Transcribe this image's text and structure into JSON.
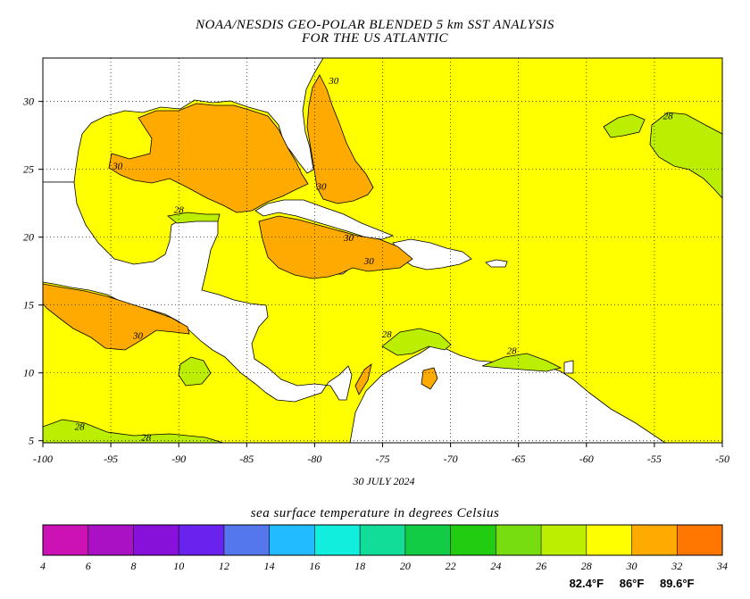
{
  "title_line1": "NOAA/NESDIS GEO-POLAR BLENDED 5 km SST ANALYSIS",
  "title_line2": "FOR THE US ATLANTIC",
  "date": "30 JULY 2024",
  "x_axis": {
    "ticks": [
      -100,
      -95,
      -90,
      -85,
      -80,
      -75,
      -70,
      -65,
      -60,
      -55,
      -50
    ],
    "labels": [
      "-100",
      "-95",
      "-90",
      "-85",
      "-80",
      "-75",
      "-70",
      "-65",
      "-60",
      "-55",
      "-50"
    ]
  },
  "y_axis": {
    "ticks": [
      5,
      10,
      15,
      20,
      25,
      30
    ],
    "labels": [
      "5",
      "10",
      "15",
      "20",
      "25",
      "30"
    ]
  },
  "contour_labels": [
    {
      "text": "30",
      "lon": -78.6,
      "lat": 31.3
    },
    {
      "text": "30",
      "lon": -94.5,
      "lat": 25.0
    },
    {
      "text": "30",
      "lon": -79.5,
      "lat": 23.5
    },
    {
      "text": "30",
      "lon": -77.5,
      "lat": 19.7
    },
    {
      "text": "30",
      "lon": -76.0,
      "lat": 18.0
    },
    {
      "text": "30",
      "lon": -93.0,
      "lat": 12.5
    },
    {
      "text": "28",
      "lon": -54.0,
      "lat": 28.7
    },
    {
      "text": "28",
      "lon": -90.0,
      "lat": 21.8
    },
    {
      "text": "28",
      "lon": -74.7,
      "lat": 12.6
    },
    {
      "text": "28",
      "lon": -65.5,
      "lat": 11.4
    },
    {
      "text": "28",
      "lon": -97.3,
      "lat": 5.8
    },
    {
      "text": "28",
      "lon": -92.4,
      "lat": 5.0
    }
  ],
  "colorbar": {
    "title": "sea surface temperature in degrees Celsius",
    "colors": [
      "#cc11b5",
      "#aa11c4",
      "#8811d9",
      "#6a22ee",
      "#5577ee",
      "#22bbff",
      "#11eedd",
      "#11dd99",
      "#11cc44",
      "#22cc11",
      "#77dd11",
      "#bbee00",
      "#ffff00",
      "#ffaa00",
      "#ff7700"
    ],
    "tick_labels": [
      "4",
      "6",
      "8",
      "10",
      "12",
      "14",
      "16",
      "18",
      "20",
      "22",
      "24",
      "26",
      "28",
      "30",
      "32",
      "34"
    ],
    "fahrenheit_labels": [
      {
        "text": "82.4°F",
        "at_celsius": 28
      },
      {
        "text": "86°F",
        "at_celsius": 30
      },
      {
        "text": "89.6°F",
        "at_celsius": 32
      }
    ]
  },
  "palette": {
    "sst_29": "#ffff00",
    "sst_31": "#ffaa00",
    "sst_27": "#bbee00",
    "land": "#ffffff"
  }
}
